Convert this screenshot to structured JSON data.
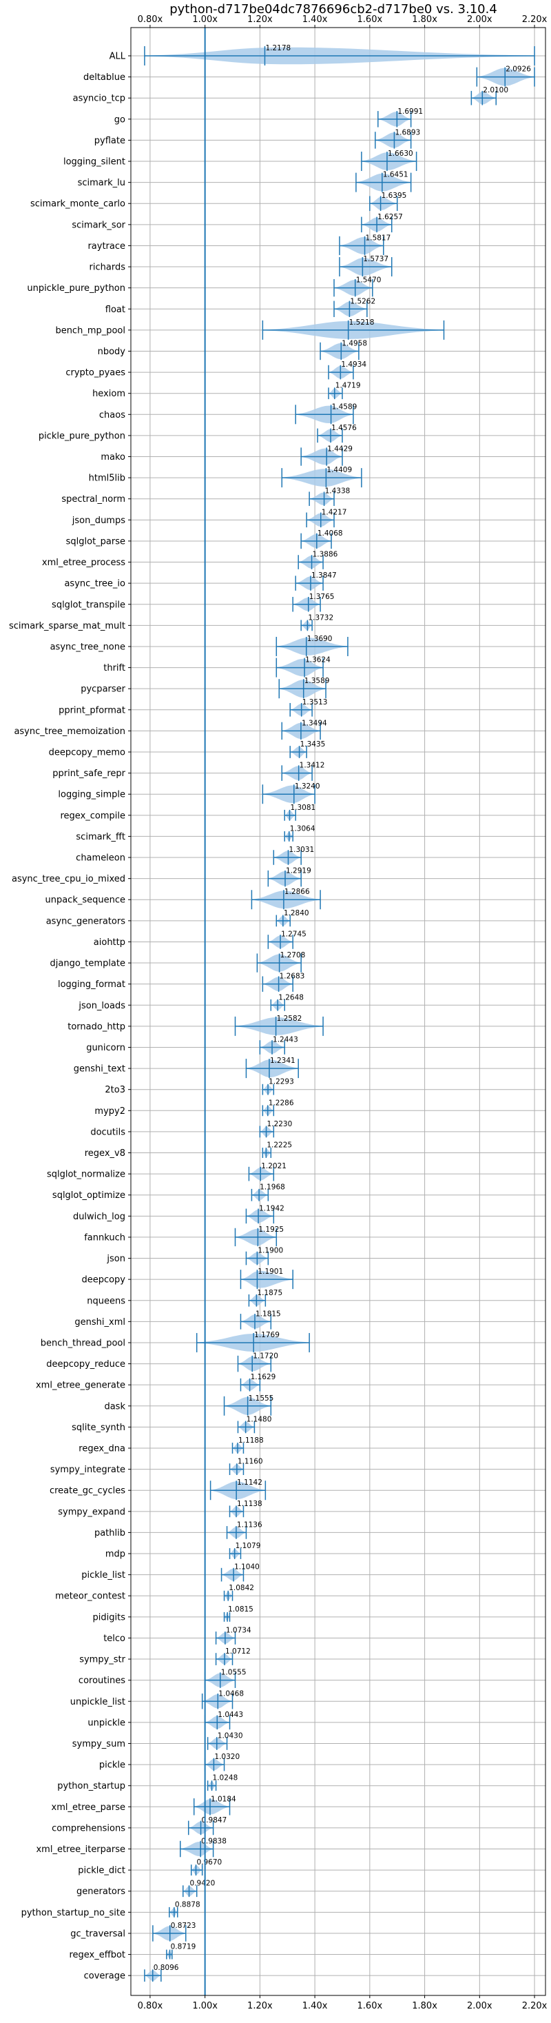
{
  "chart_data": {
    "type": "violin",
    "title": "python-d717be04dc7876696cb2-d717be0 vs. 3.10.4",
    "xlabel": "",
    "ylabel": "",
    "x_range": [
      0.73,
      2.24
    ],
    "x_ticks": [
      {
        "value": 0.8,
        "label": "0.80x"
      },
      {
        "value": 1.0,
        "label": "1.00x"
      },
      {
        "value": 1.2,
        "label": "1.20x"
      },
      {
        "value": 1.4,
        "label": "1.40x"
      },
      {
        "value": 1.6,
        "label": "1.60x"
      },
      {
        "value": 1.8,
        "label": "1.80x"
      },
      {
        "value": 2.0,
        "label": "2.00x"
      },
      {
        "value": 2.2,
        "label": "2.20x"
      }
    ],
    "reference_line": 1.0,
    "grid": true,
    "colors": {
      "violin_fill": "#a9cbea",
      "violin_line": "#1f77b4",
      "reference": "#1f77b4",
      "grid": "#b0b0b0"
    },
    "series": [
      {
        "name": "ALL",
        "value": 1.2178,
        "label": "1.2178",
        "min": 0.78,
        "max": 2.2
      },
      {
        "name": "deltablue",
        "value": 2.0926,
        "label": "2.0926",
        "min": 1.99,
        "max": 2.2
      },
      {
        "name": "asyncio_tcp",
        "value": 2.01,
        "label": "2.0100",
        "min": 1.97,
        "max": 2.06
      },
      {
        "name": "go",
        "value": 1.6991,
        "label": "1.6991",
        "min": 1.63,
        "max": 1.75
      },
      {
        "name": "pyflate",
        "value": 1.6893,
        "label": "1.6893",
        "min": 1.62,
        "max": 1.75
      },
      {
        "name": "logging_silent",
        "value": 1.663,
        "label": "1.6630",
        "min": 1.57,
        "max": 1.77
      },
      {
        "name": "scimark_lu",
        "value": 1.6451,
        "label": "1.6451",
        "min": 1.55,
        "max": 1.75
      },
      {
        "name": "scimark_monte_carlo",
        "value": 1.6395,
        "label": "1.6395",
        "min": 1.6,
        "max": 1.7
      },
      {
        "name": "scimark_sor",
        "value": 1.6257,
        "label": "1.6257",
        "min": 1.57,
        "max": 1.68
      },
      {
        "name": "raytrace",
        "value": 1.5817,
        "label": "1.5817",
        "min": 1.49,
        "max": 1.65
      },
      {
        "name": "richards",
        "value": 1.5737,
        "label": "1.5737",
        "min": 1.49,
        "max": 1.68
      },
      {
        "name": "unpickle_pure_python",
        "value": 1.547,
        "label": "1.5470",
        "min": 1.47,
        "max": 1.61
      },
      {
        "name": "float",
        "value": 1.5262,
        "label": "1.5262",
        "min": 1.47,
        "max": 1.59
      },
      {
        "name": "bench_mp_pool",
        "value": 1.5218,
        "label": "1.5218",
        "min": 1.21,
        "max": 1.87
      },
      {
        "name": "nbody",
        "value": 1.4958,
        "label": "1.4958",
        "min": 1.42,
        "max": 1.56
      },
      {
        "name": "crypto_pyaes",
        "value": 1.4934,
        "label": "1.4934",
        "min": 1.45,
        "max": 1.54
      },
      {
        "name": "hexiom",
        "value": 1.4719,
        "label": "1.4719",
        "min": 1.45,
        "max": 1.5
      },
      {
        "name": "chaos",
        "value": 1.4589,
        "label": "1.4589",
        "min": 1.33,
        "max": 1.54
      },
      {
        "name": "pickle_pure_python",
        "value": 1.4576,
        "label": "1.4576",
        "min": 1.41,
        "max": 1.5
      },
      {
        "name": "mako",
        "value": 1.4429,
        "label": "1.4429",
        "min": 1.35,
        "max": 1.5
      },
      {
        "name": "html5lib",
        "value": 1.4409,
        "label": "1.4409",
        "min": 1.28,
        "max": 1.57
      },
      {
        "name": "spectral_norm",
        "value": 1.4338,
        "label": "1.4338",
        "min": 1.38,
        "max": 1.47
      },
      {
        "name": "json_dumps",
        "value": 1.4217,
        "label": "1.4217",
        "min": 1.37,
        "max": 1.47
      },
      {
        "name": "sqlglot_parse",
        "value": 1.4068,
        "label": "1.4068",
        "min": 1.35,
        "max": 1.46
      },
      {
        "name": "xml_etree_process",
        "value": 1.3886,
        "label": "1.3886",
        "min": 1.34,
        "max": 1.43
      },
      {
        "name": "async_tree_io",
        "value": 1.3847,
        "label": "1.3847",
        "min": 1.33,
        "max": 1.43
      },
      {
        "name": "sqlglot_transpile",
        "value": 1.3765,
        "label": "1.3765",
        "min": 1.32,
        "max": 1.42
      },
      {
        "name": "scimark_sparse_mat_mult",
        "value": 1.3732,
        "label": "1.3732",
        "min": 1.35,
        "max": 1.39
      },
      {
        "name": "async_tree_none",
        "value": 1.369,
        "label": "1.3690",
        "min": 1.26,
        "max": 1.52
      },
      {
        "name": "thrift",
        "value": 1.3624,
        "label": "1.3624",
        "min": 1.26,
        "max": 1.43
      },
      {
        "name": "pycparser",
        "value": 1.3589,
        "label": "1.3589",
        "min": 1.27,
        "max": 1.44
      },
      {
        "name": "pprint_pformat",
        "value": 1.3513,
        "label": "1.3513",
        "min": 1.31,
        "max": 1.39
      },
      {
        "name": "async_tree_memoization",
        "value": 1.3494,
        "label": "1.3494",
        "min": 1.28,
        "max": 1.42
      },
      {
        "name": "deepcopy_memo",
        "value": 1.3435,
        "label": "1.3435",
        "min": 1.31,
        "max": 1.37
      },
      {
        "name": "pprint_safe_repr",
        "value": 1.3412,
        "label": "1.3412",
        "min": 1.28,
        "max": 1.39
      },
      {
        "name": "logging_simple",
        "value": 1.324,
        "label": "1.3240",
        "min": 1.21,
        "max": 1.4
      },
      {
        "name": "regex_compile",
        "value": 1.3081,
        "label": "1.3081",
        "min": 1.29,
        "max": 1.33
      },
      {
        "name": "scimark_fft",
        "value": 1.3064,
        "label": "1.3064",
        "min": 1.29,
        "max": 1.32
      },
      {
        "name": "chameleon",
        "value": 1.3031,
        "label": "1.3031",
        "min": 1.25,
        "max": 1.35
      },
      {
        "name": "async_tree_cpu_io_mixed",
        "value": 1.2919,
        "label": "1.2919",
        "min": 1.23,
        "max": 1.35
      },
      {
        "name": "unpack_sequence",
        "value": 1.2866,
        "label": "1.2866",
        "min": 1.17,
        "max": 1.42
      },
      {
        "name": "async_generators",
        "value": 1.284,
        "label": "1.2840",
        "min": 1.26,
        "max": 1.31
      },
      {
        "name": "aiohttp",
        "value": 1.2745,
        "label": "1.2745",
        "min": 1.23,
        "max": 1.32
      },
      {
        "name": "django_template",
        "value": 1.2708,
        "label": "1.2708",
        "min": 1.19,
        "max": 1.35
      },
      {
        "name": "logging_format",
        "value": 1.2683,
        "label": "1.2683",
        "min": 1.21,
        "max": 1.32
      },
      {
        "name": "json_loads",
        "value": 1.2648,
        "label": "1.2648",
        "min": 1.24,
        "max": 1.29
      },
      {
        "name": "tornado_http",
        "value": 1.2582,
        "label": "1.2582",
        "min": 1.11,
        "max": 1.43
      },
      {
        "name": "gunicorn",
        "value": 1.2443,
        "label": "1.2443",
        "min": 1.2,
        "max": 1.29
      },
      {
        "name": "genshi_text",
        "value": 1.2341,
        "label": "1.2341",
        "min": 1.15,
        "max": 1.34
      },
      {
        "name": "2to3",
        "value": 1.2293,
        "label": "1.2293",
        "min": 1.21,
        "max": 1.25
      },
      {
        "name": "mypy2",
        "value": 1.2286,
        "label": "1.2286",
        "min": 1.21,
        "max": 1.25
      },
      {
        "name": "docutils",
        "value": 1.223,
        "label": "1.2230",
        "min": 1.2,
        "max": 1.25
      },
      {
        "name": "regex_v8",
        "value": 1.2225,
        "label": "1.2225",
        "min": 1.21,
        "max": 1.24
      },
      {
        "name": "sqlglot_normalize",
        "value": 1.2021,
        "label": "1.2021",
        "min": 1.16,
        "max": 1.25
      },
      {
        "name": "sqlglot_optimize",
        "value": 1.1968,
        "label": "1.1968",
        "min": 1.17,
        "max": 1.23
      },
      {
        "name": "dulwich_log",
        "value": 1.1942,
        "label": "1.1942",
        "min": 1.15,
        "max": 1.25
      },
      {
        "name": "fannkuch",
        "value": 1.1925,
        "label": "1.1925",
        "min": 1.11,
        "max": 1.26
      },
      {
        "name": "json",
        "value": 1.19,
        "label": "1.1900",
        "min": 1.15,
        "max": 1.23
      },
      {
        "name": "deepcopy",
        "value": 1.1901,
        "label": "1.1901",
        "min": 1.13,
        "max": 1.32
      },
      {
        "name": "nqueens",
        "value": 1.1875,
        "label": "1.1875",
        "min": 1.16,
        "max": 1.22
      },
      {
        "name": "genshi_xml",
        "value": 1.1815,
        "label": "1.1815",
        "min": 1.13,
        "max": 1.24
      },
      {
        "name": "bench_thread_pool",
        "value": 1.1769,
        "label": "1.1769",
        "min": 0.97,
        "max": 1.38
      },
      {
        "name": "deepcopy_reduce",
        "value": 1.172,
        "label": "1.1720",
        "min": 1.12,
        "max": 1.24
      },
      {
        "name": "xml_etree_generate",
        "value": 1.1629,
        "label": "1.1629",
        "min": 1.13,
        "max": 1.2
      },
      {
        "name": "dask",
        "value": 1.1555,
        "label": "1.1555",
        "min": 1.07,
        "max": 1.24
      },
      {
        "name": "sqlite_synth",
        "value": 1.148,
        "label": "1.1480",
        "min": 1.12,
        "max": 1.18
      },
      {
        "name": "regex_dna",
        "value": 1.1188,
        "label": "1.1188",
        "min": 1.1,
        "max": 1.14
      },
      {
        "name": "sympy_integrate",
        "value": 1.116,
        "label": "1.1160",
        "min": 1.09,
        "max": 1.14
      },
      {
        "name": "create_gc_cycles",
        "value": 1.1142,
        "label": "1.1142",
        "min": 1.02,
        "max": 1.22
      },
      {
        "name": "sympy_expand",
        "value": 1.1138,
        "label": "1.1138",
        "min": 1.09,
        "max": 1.14
      },
      {
        "name": "pathlib",
        "value": 1.1136,
        "label": "1.1136",
        "min": 1.08,
        "max": 1.15
      },
      {
        "name": "mdp",
        "value": 1.1079,
        "label": "1.1079",
        "min": 1.09,
        "max": 1.13
      },
      {
        "name": "pickle_list",
        "value": 1.104,
        "label": "1.1040",
        "min": 1.06,
        "max": 1.14
      },
      {
        "name": "meteor_contest",
        "value": 1.0842,
        "label": "1.0842",
        "min": 1.07,
        "max": 1.1
      },
      {
        "name": "pidigits",
        "value": 1.0815,
        "label": "1.0815",
        "min": 1.07,
        "max": 1.09
      },
      {
        "name": "telco",
        "value": 1.0734,
        "label": "1.0734",
        "min": 1.04,
        "max": 1.11
      },
      {
        "name": "sympy_str",
        "value": 1.0712,
        "label": "1.0712",
        "min": 1.04,
        "max": 1.1
      },
      {
        "name": "coroutines",
        "value": 1.0555,
        "label": "1.0555",
        "min": 1.0,
        "max": 1.11
      },
      {
        "name": "unpickle_list",
        "value": 1.0468,
        "label": "1.0468",
        "min": 0.99,
        "max": 1.1
      },
      {
        "name": "unpickle",
        "value": 1.0443,
        "label": "1.0443",
        "min": 1.0,
        "max": 1.09
      },
      {
        "name": "sympy_sum",
        "value": 1.043,
        "label": "1.0430",
        "min": 1.01,
        "max": 1.08
      },
      {
        "name": "pickle",
        "value": 1.032,
        "label": "1.0320",
        "min": 1.0,
        "max": 1.07
      },
      {
        "name": "python_startup",
        "value": 1.0248,
        "label": "1.0248",
        "min": 1.01,
        "max": 1.04
      },
      {
        "name": "xml_etree_parse",
        "value": 1.0184,
        "label": "1.0184",
        "min": 0.96,
        "max": 1.09
      },
      {
        "name": "comprehensions",
        "value": 0.9847,
        "label": "0.9847",
        "min": 0.94,
        "max": 1.03
      },
      {
        "name": "xml_etree_iterparse",
        "value": 0.9838,
        "label": "0.9838",
        "min": 0.91,
        "max": 1.03
      },
      {
        "name": "pickle_dict",
        "value": 0.967,
        "label": "0.9670",
        "min": 0.95,
        "max": 0.99
      },
      {
        "name": "generators",
        "value": 0.942,
        "label": "0.9420",
        "min": 0.92,
        "max": 0.97
      },
      {
        "name": "python_startup_no_site",
        "value": 0.8878,
        "label": "0.8878",
        "min": 0.87,
        "max": 0.9
      },
      {
        "name": "gc_traversal",
        "value": 0.8723,
        "label": "0.8723",
        "min": 0.81,
        "max": 0.93
      },
      {
        "name": "regex_effbot",
        "value": 0.8719,
        "label": "0.8719",
        "min": 0.86,
        "max": 0.88
      },
      {
        "name": "coverage",
        "value": 0.8096,
        "label": "0.8096",
        "min": 0.78,
        "max": 0.84
      }
    ]
  }
}
